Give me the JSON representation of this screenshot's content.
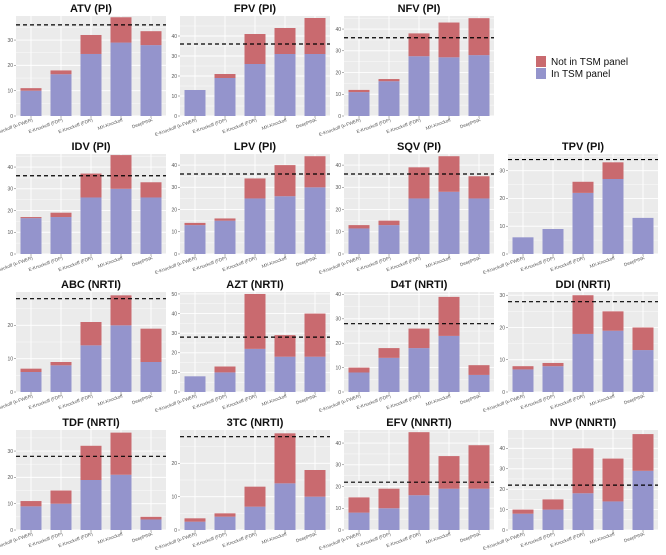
{
  "colors": {
    "not_in_panel": "#C96A6F",
    "in_panel": "#9494CC",
    "panel_bg": "#EBEBEB",
    "grid": "#FFFFFF",
    "threshold_line": "#000000"
  },
  "legend": {
    "items": [
      {
        "label": "Not in TSM panel",
        "color": "#C96A6F"
      },
      {
        "label": "In TSM panel",
        "color": "#9494CC"
      }
    ]
  },
  "chart_data": [
    {
      "type": "bar",
      "title": "ATV (PI)",
      "categories": [
        "E-Knockoff (k-FWER)",
        "E-Knockoff (FDP)",
        "E-Knockoff (FDR)",
        "MX-Knockoff",
        "DeepPINK"
      ],
      "ylim": [
        0,
        39.5
      ],
      "yticks": [
        0,
        10,
        20,
        30
      ],
      "threshold": 36,
      "series": [
        {
          "name": "In TSM panel",
          "values": [
            10,
            16.5,
            24.5,
            29,
            28
          ]
        },
        {
          "name": "Not in TSM panel",
          "values": [
            1,
            1.5,
            7.5,
            10,
            5.5
          ]
        }
      ]
    },
    {
      "type": "bar",
      "title": "FPV (PI)",
      "categories": [
        "E-Knockoff (k-FWER)",
        "E-Knockoff (FDP)",
        "E-Knockoff (FDR)",
        "MX-Knockoff",
        "DeepPINK"
      ],
      "ylim": [
        0,
        50
      ],
      "yticks": [
        0,
        10,
        20,
        30,
        40
      ],
      "threshold": 36,
      "series": [
        {
          "name": "In TSM panel",
          "values": [
            13,
            19,
            26,
            31,
            31
          ]
        },
        {
          "name": "Not in TSM panel",
          "values": [
            0,
            2,
            15,
            13,
            18
          ]
        }
      ]
    },
    {
      "type": "bar",
      "title": "NFV (PI)",
      "categories": [
        "E-Knockoff (k-FWER)",
        "E-Knockoff (FDP)",
        "E-Knockoff (FDR)",
        "MX-Knockoff",
        "DeepPINK"
      ],
      "ylim": [
        0,
        46
      ],
      "yticks": [
        0,
        10,
        20,
        30,
        40
      ],
      "threshold": 36,
      "series": [
        {
          "name": "In TSM panel",
          "values": [
            11,
            16,
            27.5,
            27,
            28
          ]
        },
        {
          "name": "Not in TSM panel",
          "values": [
            1,
            1,
            10.5,
            16,
            17
          ]
        }
      ]
    },
    {
      "type": "bar",
      "title": "IDV (PI)",
      "categories": [
        "E-Knockoff (k-FWER)",
        "E-Knockoff (FDP)",
        "E-Knockoff (FDR)",
        "MX-Knockoff",
        "DeepPINK"
      ],
      "ylim": [
        0,
        46
      ],
      "yticks": [
        0,
        10,
        20,
        30,
        40
      ],
      "threshold": 36,
      "series": [
        {
          "name": "In TSM panel",
          "values": [
            16.5,
            17,
            26,
            30,
            26
          ]
        },
        {
          "name": "Not in TSM panel",
          "values": [
            0.5,
            2,
            11,
            15.5,
            7
          ]
        }
      ]
    },
    {
      "type": "bar",
      "title": "LPV (PI)",
      "categories": [
        "E-Knockoff (k-FWER)",
        "E-Knockoff (FDP)",
        "E-Knockoff (FDR)",
        "MX-Knockoff",
        "DeepPINK"
      ],
      "ylim": [
        0,
        45
      ],
      "yticks": [
        0,
        10,
        20,
        30,
        40
      ],
      "threshold": 36,
      "series": [
        {
          "name": "In TSM panel",
          "values": [
            13,
            15,
            25,
            26,
            30
          ]
        },
        {
          "name": "Not in TSM panel",
          "values": [
            1,
            1,
            9,
            14,
            14
          ]
        }
      ]
    },
    {
      "type": "bar",
      "title": "SQV (PI)",
      "categories": [
        "E-Knockoff (k-FWER)",
        "E-Knockoff (FDP)",
        "E-Knockoff (FDR)",
        "MX-Knockoff",
        "DeepPINK"
      ],
      "ylim": [
        0,
        45
      ],
      "yticks": [
        0,
        10,
        20,
        30,
        40
      ],
      "threshold": 36,
      "series": [
        {
          "name": "In TSM panel",
          "values": [
            11.5,
            13,
            25,
            28,
            25
          ]
        },
        {
          "name": "Not in TSM panel",
          "values": [
            1.5,
            2,
            14,
            16,
            10
          ]
        }
      ]
    },
    {
      "type": "bar",
      "title": "TPV (PI)",
      "categories": [
        "E-Knockoff (k-FWER)",
        "E-Knockoff (FDP)",
        "E-Knockoff (FDR)",
        "MX-Knockoff",
        "DeepPINK"
      ],
      "ylim": [
        0,
        36
      ],
      "yticks": [
        0,
        10,
        20,
        30
      ],
      "threshold": 34,
      "series": [
        {
          "name": "In TSM panel",
          "values": [
            6,
            9,
            22,
            27,
            13
          ]
        },
        {
          "name": "Not in TSM panel",
          "values": [
            0,
            0,
            4,
            6,
            0
          ]
        }
      ]
    },
    {
      "type": "bar",
      "title": "ABC (NRTI)",
      "categories": [
        "E-Knockoff (k-FWER)",
        "E-Knockoff (FDP)",
        "E-Knockoff (FDR)",
        "MX-Knockoff",
        "DeepPINK"
      ],
      "ylim": [
        0,
        30
      ],
      "yticks": [
        0,
        10,
        20
      ],
      "threshold": 28,
      "series": [
        {
          "name": "In TSM panel",
          "values": [
            6,
            8,
            14,
            20,
            9
          ]
        },
        {
          "name": "Not in TSM panel",
          "values": [
            1,
            1,
            7,
            9,
            10
          ]
        }
      ]
    },
    {
      "type": "bar",
      "title": "AZT (NRTI)",
      "categories": [
        "E-Knockoff (k-FWER)",
        "E-Knockoff (FDP)",
        "E-Knockoff (FDR)",
        "MX-Knockoff",
        "DeepPINK"
      ],
      "ylim": [
        0,
        51
      ],
      "yticks": [
        0,
        10,
        20,
        30,
        40,
        50
      ],
      "threshold": 28,
      "series": [
        {
          "name": "In TSM panel",
          "values": [
            8,
            10,
            22,
            18,
            18
          ]
        },
        {
          "name": "Not in TSM panel",
          "values": [
            0,
            3,
            28,
            11,
            22
          ]
        }
      ]
    },
    {
      "type": "bar",
      "title": "D4T (NRTI)",
      "categories": [
        "E-Knockoff (k-FWER)",
        "E-Knockoff (FDP)",
        "E-Knockoff (FDR)",
        "MX-Knockoff",
        "DeepPINK"
      ],
      "ylim": [
        0,
        41
      ],
      "yticks": [
        0,
        10,
        20,
        30,
        40
      ],
      "threshold": 28,
      "series": [
        {
          "name": "In TSM panel",
          "values": [
            8,
            14,
            18,
            23,
            7
          ]
        },
        {
          "name": "Not in TSM panel",
          "values": [
            2,
            4,
            8,
            16,
            4
          ]
        }
      ]
    },
    {
      "type": "bar",
      "title": "DDI (NRTI)",
      "categories": [
        "E-Knockoff (k-FWER)",
        "E-Knockoff (FDP)",
        "E-Knockoff (FDR)",
        "MX-Knockoff",
        "DeepPINK"
      ],
      "ylim": [
        0,
        31
      ],
      "yticks": [
        0,
        10,
        20,
        30
      ],
      "threshold": 28,
      "series": [
        {
          "name": "In TSM panel",
          "values": [
            7,
            8,
            18,
            19,
            13
          ]
        },
        {
          "name": "Not in TSM panel",
          "values": [
            1,
            1,
            12,
            6,
            7
          ]
        }
      ]
    },
    {
      "type": "bar",
      "title": "TDF (NRTI)",
      "categories": [
        "E-Knockoff (k-FWER)",
        "E-Knockoff (FDP)",
        "E-Knockoff (FDR)",
        "MX-Knockoff",
        "DeepPINK"
      ],
      "ylim": [
        0,
        38
      ],
      "yticks": [
        0,
        10,
        20,
        30
      ],
      "threshold": 28,
      "series": [
        {
          "name": "In TSM panel",
          "values": [
            9,
            10,
            19,
            21,
            4
          ]
        },
        {
          "name": "Not in TSM panel",
          "values": [
            2,
            5,
            13,
            16,
            1
          ]
        }
      ]
    },
    {
      "type": "bar",
      "title": "3TC (NRTI)",
      "categories": [
        "E-Knockoff (k-FWER)",
        "E-Knockoff (FDP)",
        "E-Knockoff (FDR)",
        "MX-Knockoff",
        "DeepPINK"
      ],
      "ylim": [
        0,
        30
      ],
      "yticks": [
        0,
        10,
        20
      ],
      "threshold": 28,
      "series": [
        {
          "name": "In TSM panel",
          "values": [
            2.5,
            4,
            7,
            14,
            10
          ]
        },
        {
          "name": "Not in TSM panel",
          "values": [
            1,
            1,
            6,
            15,
            8
          ]
        }
      ]
    },
    {
      "type": "bar",
      "title": "EFV (NNRTI)",
      "categories": [
        "E-Knockoff (k-FWER)",
        "E-Knockoff (FDP)",
        "E-Knockoff (FDR)",
        "MX-Knockoff",
        "DeepPINK"
      ],
      "ylim": [
        0,
        46
      ],
      "yticks": [
        0,
        10,
        20,
        30,
        40
      ],
      "threshold": 22,
      "series": [
        {
          "name": "In TSM panel",
          "values": [
            8,
            10,
            16,
            19,
            19
          ]
        },
        {
          "name": "Not in TSM panel",
          "values": [
            7,
            9,
            29,
            15,
            20
          ]
        }
      ]
    },
    {
      "type": "bar",
      "title": "NVP (NNRTI)",
      "categories": [
        "E-Knockoff (k-FWER)",
        "E-Knockoff (FDP)",
        "E-Knockoff (FDR)",
        "MX-Knockoff",
        "DeepPINK"
      ],
      "ylim": [
        0,
        49
      ],
      "yticks": [
        0,
        10,
        20,
        30,
        40
      ],
      "threshold": 22,
      "series": [
        {
          "name": "In TSM panel",
          "values": [
            8,
            10,
            18,
            14,
            29
          ]
        },
        {
          "name": "Not in TSM panel",
          "values": [
            2,
            5,
            22,
            21,
            18
          ]
        }
      ]
    }
  ]
}
